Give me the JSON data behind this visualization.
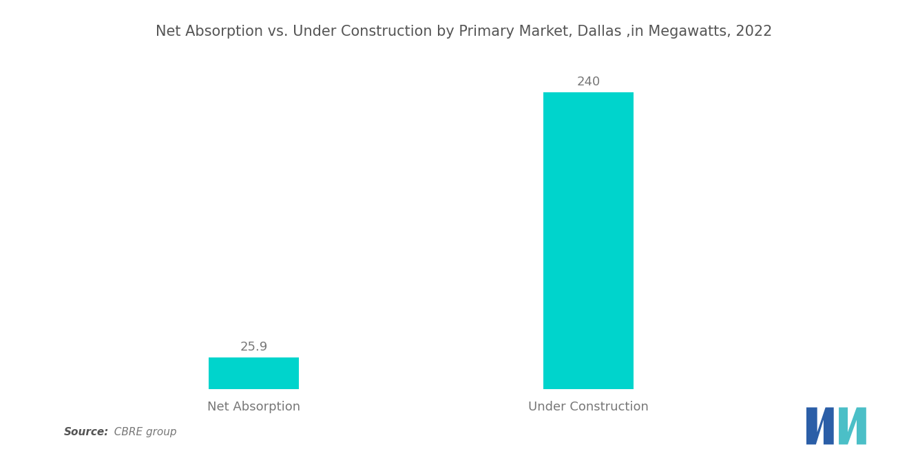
{
  "title": "Net Absorption vs. Under Construction by Primary Market, Dallas ,in Megawatts, 2022",
  "categories": [
    "Net Absorption",
    "Under Construction"
  ],
  "values": [
    25.9,
    240
  ],
  "bar_color": "#00D4CC",
  "bar_width": 0.18,
  "label_fontsize": 13,
  "value_fontsize": 13,
  "title_fontsize": 15,
  "background_color": "#ffffff",
  "source_bold": "Source:",
  "source_regular": "  CBRE group",
  "ylim": [
    0,
    270
  ],
  "xlim": [
    -0.1,
    1.5
  ],
  "x_positions": [
    0.28,
    0.95
  ],
  "text_color": "#777777",
  "title_color": "#555555"
}
